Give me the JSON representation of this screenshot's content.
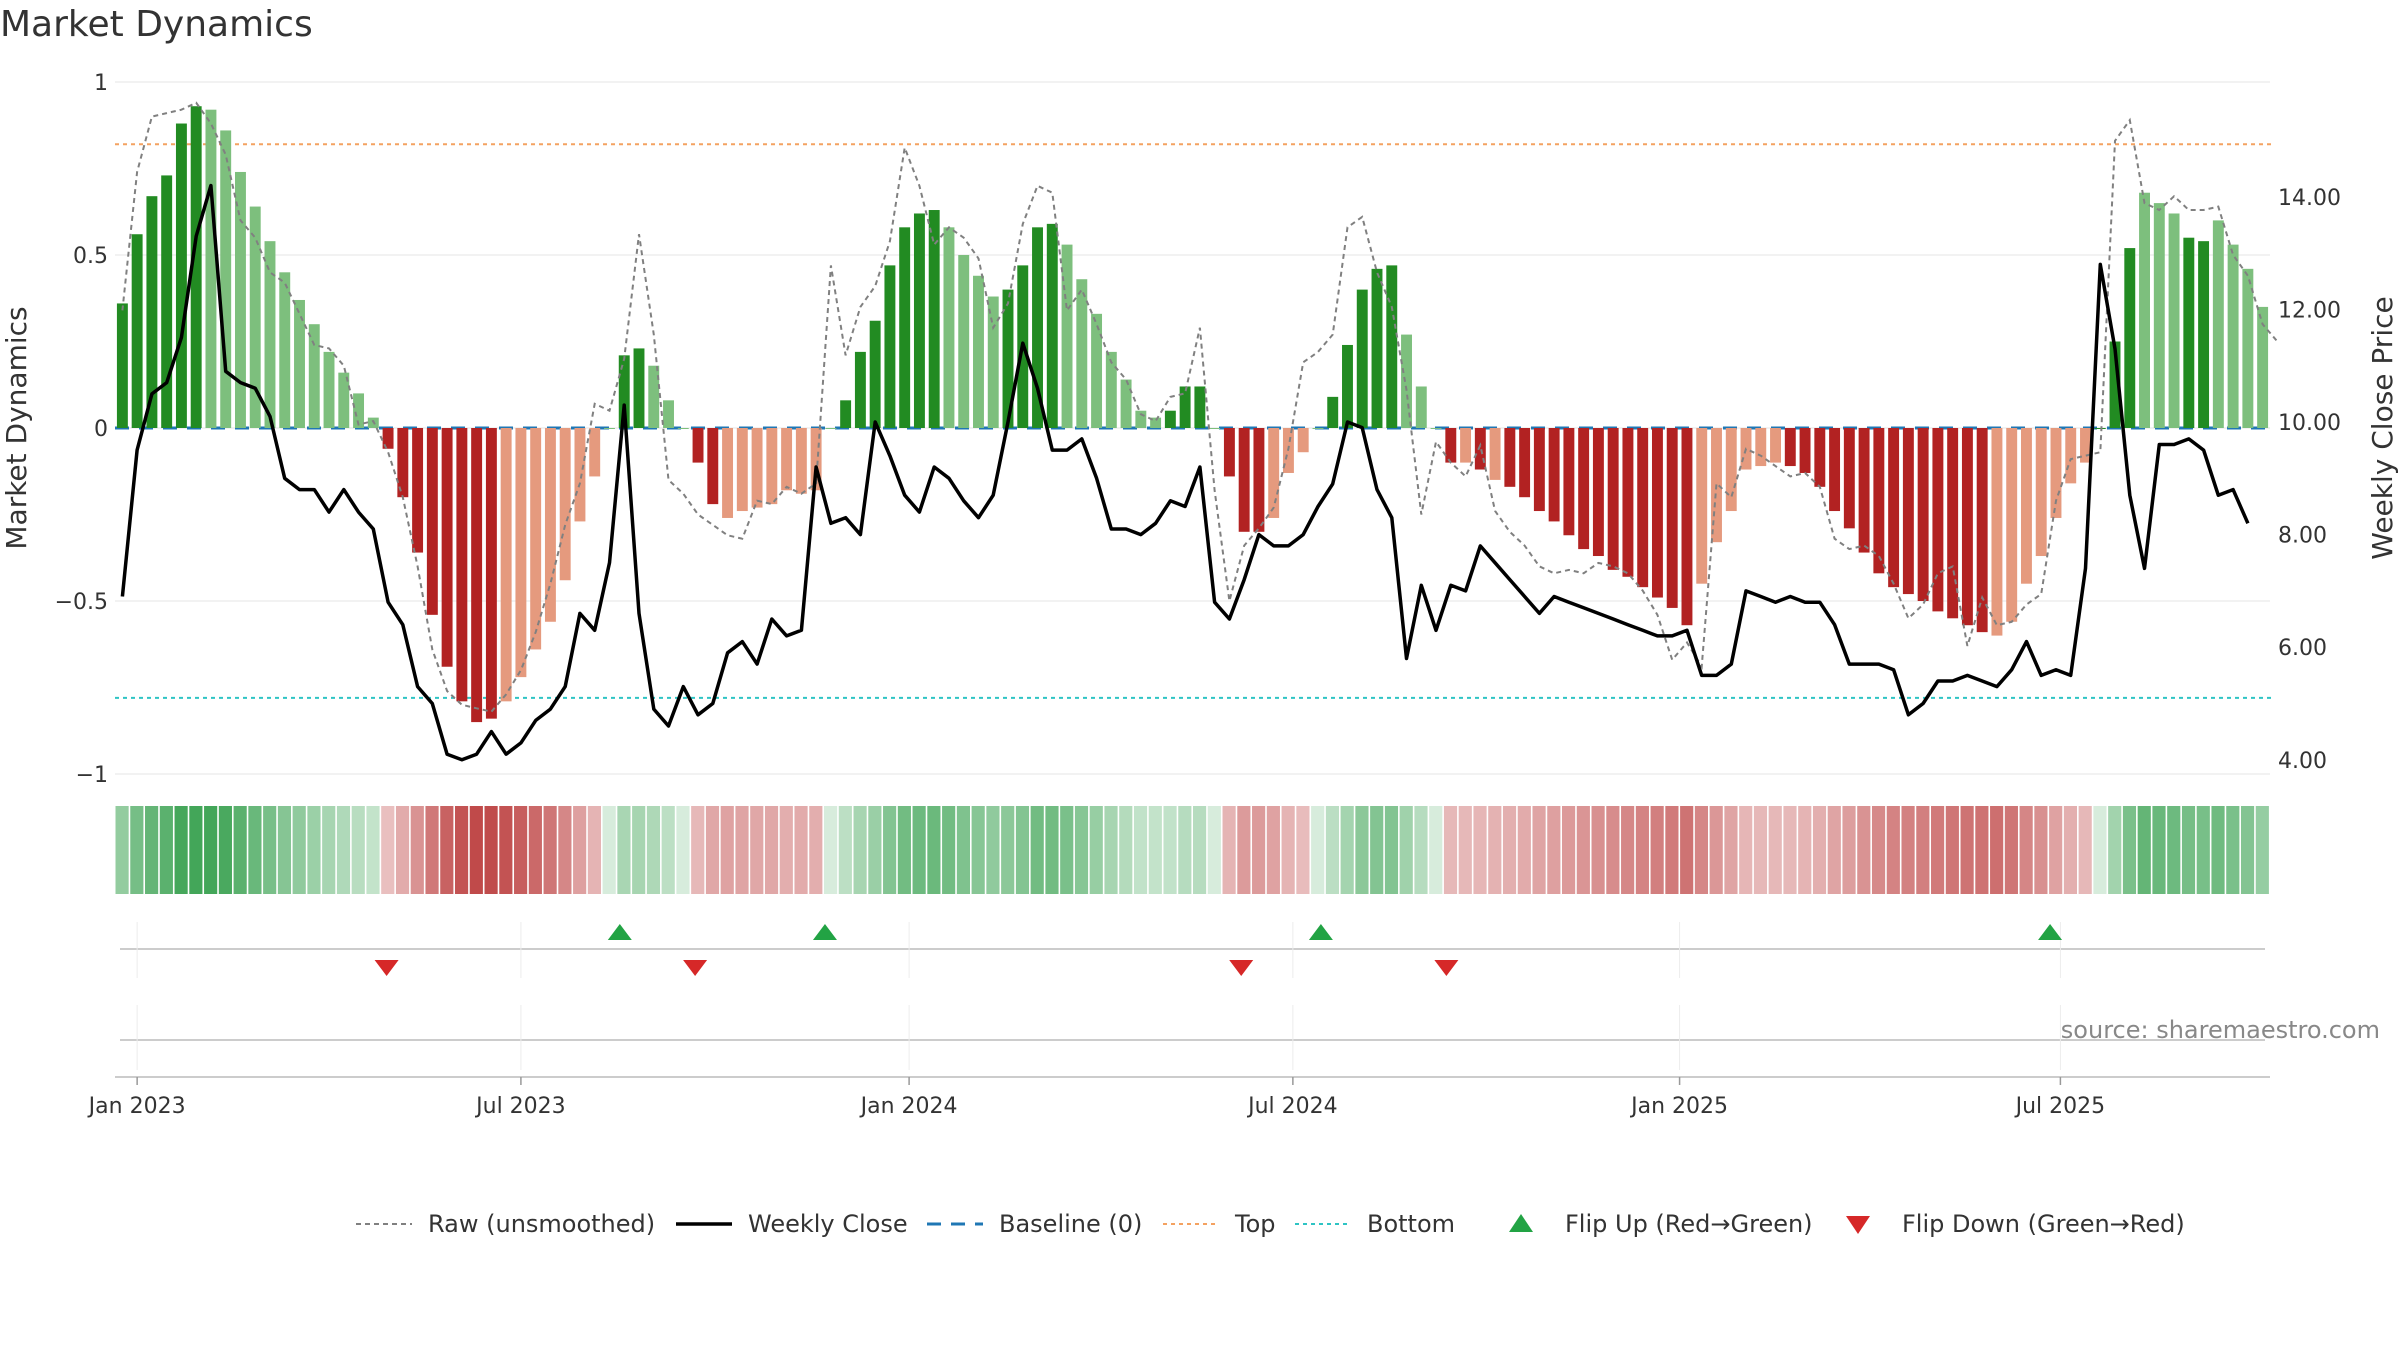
{
  "chart_data": {
    "type": "bar",
    "title": "Market Dynamics",
    "ylabel_left": "Market Dynamics",
    "ylabel_right": "Weekly Close Price",
    "ylim_left": [
      -1.05,
      1.05
    ],
    "ylim_right": [
      2.5,
      15.0
    ],
    "yticks_left": [
      {
        "v": 1,
        "label": "1"
      },
      {
        "v": 0.5,
        "label": "0.5"
      },
      {
        "v": 0,
        "label": "0"
      },
      {
        "v": -0.5,
        "label": "−0.5"
      },
      {
        "v": -1,
        "label": "−1"
      }
    ],
    "yticks_right": [
      {
        "v": 14,
        "label": "14.00"
      },
      {
        "v": 12,
        "label": "12.00"
      },
      {
        "v": 10,
        "label": "10.00"
      },
      {
        "v": 8,
        "label": "8.00"
      },
      {
        "v": 6,
        "label": "6.00"
      },
      {
        "v": 4,
        "label": "4.00"
      }
    ],
    "xticks": [
      {
        "label": "Jan 2023",
        "week": 1.5
      },
      {
        "label": "Jul 2023",
        "week": 27.5
      },
      {
        "label": "Jan 2024",
        "week": 53.8
      },
      {
        "label": "Jul 2024",
        "week": 79.8
      },
      {
        "label": "Jan 2025",
        "week": 106
      },
      {
        "label": "Jul 2025",
        "week": 131.8
      }
    ],
    "top_level": 0.82,
    "bottom_level": -0.78,
    "baseline": 0,
    "values": [
      0.36,
      0.56,
      0.67,
      0.73,
      0.88,
      0.93,
      0.92,
      0.86,
      0.74,
      0.64,
      0.54,
      0.45,
      0.37,
      0.3,
      0.22,
      0.16,
      0.1,
      0.03,
      -0.06,
      -0.2,
      -0.36,
      -0.54,
      -0.69,
      -0.79,
      -0.85,
      -0.84,
      -0.79,
      -0.72,
      -0.64,
      -0.56,
      -0.44,
      -0.27,
      -0.14,
      0,
      0.21,
      0.23,
      0.18,
      0.08,
      0,
      -0.1,
      -0.22,
      -0.26,
      -0.24,
      -0.23,
      -0.22,
      -0.18,
      -0.19,
      -0.18,
      0,
      0.08,
      0.22,
      0.31,
      0.47,
      0.58,
      0.62,
      0.63,
      0.58,
      0.5,
      0.44,
      0.38,
      0.4,
      0.47,
      0.58,
      0.59,
      0.53,
      0.43,
      0.33,
      0.22,
      0.14,
      0.05,
      0.03,
      0.05,
      0.12,
      0.12,
      0,
      -0.14,
      -0.3,
      -0.3,
      -0.26,
      -0.13,
      -0.07,
      0,
      0.09,
      0.24,
      0.4,
      0.46,
      0.47,
      0.27,
      0.12,
      0,
      -0.1,
      -0.1,
      -0.12,
      -0.15,
      -0.17,
      -0.2,
      -0.24,
      -0.27,
      -0.31,
      -0.35,
      -0.37,
      -0.41,
      -0.43,
      -0.46,
      -0.49,
      -0.52,
      -0.57,
      -0.45,
      -0.33,
      -0.24,
      -0.12,
      -0.11,
      -0.1,
      -0.11,
      -0.13,
      -0.17,
      -0.24,
      -0.29,
      -0.36,
      -0.42,
      -0.46,
      -0.48,
      -0.5,
      -0.53,
      -0.55,
      -0.57,
      -0.59,
      -0.6,
      -0.56,
      -0.45,
      -0.37,
      -0.26,
      -0.16,
      -0.1,
      0,
      0.25,
      0.52,
      0.68,
      0.65,
      0.62,
      0.55,
      0.54,
      0.6,
      0.53,
      0.46,
      0.35
    ],
    "bar_shades": [
      2,
      2,
      2,
      2,
      2,
      2,
      1,
      1,
      1,
      1,
      1,
      1,
      1,
      1,
      1,
      1,
      1,
      1,
      2,
      2,
      2,
      2,
      2,
      2,
      2,
      2,
      1,
      1,
      1,
      1,
      1,
      1,
      1,
      0,
      2,
      2,
      1,
      1,
      0,
      2,
      2,
      1,
      1,
      1,
      1,
      1,
      1,
      1,
      0,
      2,
      2,
      2,
      2,
      2,
      2,
      2,
      1,
      1,
      1,
      1,
      2,
      2,
      2,
      2,
      1,
      1,
      1,
      1,
      1,
      1,
      1,
      2,
      2,
      2,
      0,
      2,
      2,
      2,
      1,
      1,
      1,
      0,
      2,
      2,
      2,
      2,
      2,
      1,
      1,
      0,
      2,
      1,
      2,
      1,
      2,
      2,
      2,
      2,
      2,
      2,
      2,
      2,
      2,
      2,
      2,
      2,
      2,
      1,
      1,
      1,
      1,
      1,
      1,
      2,
      2,
      2,
      2,
      2,
      2,
      2,
      2,
      2,
      2,
      2,
      2,
      2,
      2,
      1,
      1,
      1,
      1,
      1,
      1,
      0,
      2,
      2,
      2,
      1,
      1,
      1,
      2,
      2,
      1,
      1,
      1
    ],
    "raw_unsmoothed": [
      0.34,
      0.74,
      0.9,
      0.91,
      0.92,
      0.94,
      0.88,
      0.79,
      0.6,
      0.55,
      0.45,
      0.42,
      0.33,
      0.24,
      0.23,
      0.18,
      0.01,
      0.02,
      -0.07,
      -0.2,
      -0.4,
      -0.64,
      -0.76,
      -0.8,
      -0.81,
      -0.82,
      -0.77,
      -0.7,
      -0.59,
      -0.45,
      -0.28,
      -0.16,
      0.07,
      0.05,
      0.2,
      0.56,
      0.27,
      -0.15,
      -0.19,
      -0.25,
      -0.28,
      -0.31,
      -0.32,
      -0.21,
      -0.22,
      -0.17,
      -0.19,
      -0.16,
      0.47,
      0.21,
      0.35,
      0.41,
      0.54,
      0.81,
      0.7,
      0.53,
      0.58,
      0.55,
      0.49,
      0.29,
      0.36,
      0.59,
      0.7,
      0.68,
      0.34,
      0.4,
      0.3,
      0.19,
      0.14,
      0.04,
      0.02,
      0.09,
      0.1,
      0.29,
      -0.18,
      -0.5,
      -0.34,
      -0.29,
      -0.23,
      -0.06,
      0.19,
      0.22,
      0.27,
      0.58,
      0.61,
      0.45,
      0.35,
      0.11,
      -0.25,
      -0.04,
      -0.1,
      -0.14,
      -0.05,
      -0.24,
      -0.3,
      -0.34,
      -0.4,
      -0.42,
      -0.41,
      -0.42,
      -0.39,
      -0.4,
      -0.42,
      -0.47,
      -0.54,
      -0.67,
      -0.62,
      -0.69,
      -0.16,
      -0.2,
      -0.06,
      -0.08,
      -0.11,
      -0.14,
      -0.13,
      -0.17,
      -0.32,
      -0.35,
      -0.34,
      -0.37,
      -0.45,
      -0.55,
      -0.51,
      -0.42,
      -0.4,
      -0.63,
      -0.49,
      -0.57,
      -0.56,
      -0.51,
      -0.48,
      -0.21,
      -0.09,
      -0.08,
      -0.07,
      0.83,
      0.89,
      0.65,
      0.63,
      0.67,
      0.63,
      0.63,
      0.64,
      0.5,
      0.44,
      0.3,
      0.25
    ],
    "weekly_close": [
      6.9,
      9.5,
      10.5,
      10.7,
      11.5,
      13.3,
      14.2,
      10.9,
      10.7,
      10.6,
      10.1,
      9.0,
      8.8,
      8.8,
      8.4,
      8.8,
      8.4,
      8.1,
      6.8,
      6.4,
      5.3,
      5.0,
      4.1,
      4.0,
      4.1,
      4.5,
      4.1,
      4.3,
      4.7,
      4.9,
      5.3,
      6.6,
      6.3,
      7.5,
      10.3,
      6.6,
      4.9,
      4.6,
      5.3,
      4.8,
      5.0,
      5.9,
      6.1,
      5.7,
      6.5,
      6.2,
      6.3,
      9.2,
      8.2,
      8.3,
      8.0,
      10.0,
      9.4,
      8.7,
      8.4,
      9.2,
      9.0,
      8.6,
      8.3,
      8.7,
      10.0,
      11.4,
      10.6,
      9.5,
      9.5,
      9.7,
      9.0,
      8.1,
      8.1,
      8.0,
      8.2,
      8.6,
      8.5,
      9.2,
      6.8,
      6.5,
      7.2,
      8.0,
      7.8,
      7.8,
      8.0,
      8.5,
      8.9,
      10.0,
      9.9,
      8.8,
      8.3,
      5.8,
      7.1,
      6.3,
      7.1,
      7.0,
      7.8,
      7.5,
      7.2,
      6.9,
      6.6,
      6.9,
      6.8,
      6.7,
      6.6,
      6.5,
      6.4,
      6.3,
      6.2,
      6.2,
      6.3,
      5.5,
      5.5,
      5.7,
      7.0,
      6.9,
      6.8,
      6.9,
      6.8,
      6.8,
      6.4,
      5.7,
      5.7,
      5.7,
      5.6,
      4.8,
      5.0,
      5.4,
      5.4,
      5.5,
      5.4,
      5.3,
      5.6,
      6.1,
      5.5,
      5.6,
      5.5,
      7.4,
      12.8,
      11.3,
      8.7,
      7.4,
      9.6,
      9.6,
      9.7,
      9.5,
      8.7,
      8.8,
      8.2
    ],
    "flip_up_weeks": [
      33.7,
      47.6,
      81.2,
      130.6
    ],
    "flip_down_weeks": [
      17.9,
      38.8,
      75.8,
      89.7
    ],
    "legend": [
      {
        "label": "Raw (unsmoothed)",
        "kind": "dashed-gray"
      },
      {
        "label": "Weekly Close",
        "kind": "solid-black"
      },
      {
        "label": "Baseline (0)",
        "kind": "dashed-blue"
      },
      {
        "label": "Top",
        "kind": "dotted-orange"
      },
      {
        "label": "Bottom",
        "kind": "dotted-teal"
      },
      {
        "label": "Flip Up (Red→Green)",
        "kind": "triangle-up"
      },
      {
        "label": "Flip Down (Green→Red)",
        "kind": "triangle-down"
      }
    ],
    "legend_placement": "bottom-center",
    "grid": true,
    "source": "source: sharemaestro.com"
  },
  "colors": {
    "green_strong": "#228b22",
    "green_light": "#7dbf7d",
    "red_strong": "#b22222",
    "red_light": "#e59a7e",
    "raw_line": "#808080",
    "close_line": "#000000",
    "baseline": "#1f77b4",
    "top": "#f4a261",
    "bottom": "#2ec4c4",
    "flip_up": "#22a344",
    "flip_down": "#d62828"
  }
}
